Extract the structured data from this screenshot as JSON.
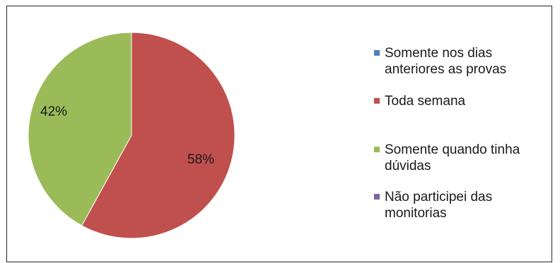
{
  "chart_data": {
    "type": "pie",
    "slices": [
      {
        "label": "Somente nos dias\nanteriores as provas",
        "value": 0,
        "color": "#4f81bd"
      },
      {
        "label": "Toda semana",
        "value": 58,
        "display": "58%",
        "color": "#c0504d"
      },
      {
        "label": "Somente quando tinha\ndúvidas",
        "value": 42,
        "display": "42%",
        "color": "#9bbb59"
      },
      {
        "label": "Não participei das\nmonitorias",
        "value": 0,
        "color": "#8064a2"
      }
    ],
    "legend_position": "right"
  }
}
